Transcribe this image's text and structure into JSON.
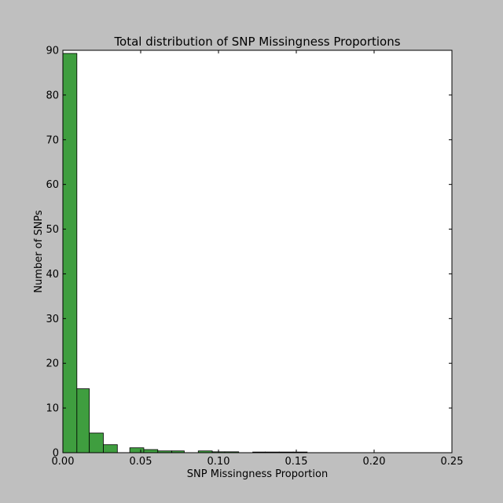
{
  "chart_data": {
    "type": "bar",
    "title": "Total distribution of SNP Missingness Proportions",
    "xlabel": "SNP Missingness Proportion",
    "ylabel": "Number of SNPs",
    "xlim": [
      0.0,
      0.25
    ],
    "ylim": [
      0,
      90
    ],
    "x_ticks": [
      "0.00",
      "0.05",
      "0.10",
      "0.15",
      "0.20",
      "0.25"
    ],
    "y_ticks": [
      "0",
      "10",
      "20",
      "30",
      "40",
      "50",
      "60",
      "70",
      "80",
      "90"
    ],
    "bar_color": "#3f9e3f",
    "bins": [
      {
        "x0": 0.0,
        "x1": 0.009,
        "value": 89.3
      },
      {
        "x0": 0.009,
        "x1": 0.017,
        "value": 14.3
      },
      {
        "x0": 0.017,
        "x1": 0.026,
        "value": 4.4
      },
      {
        "x0": 0.026,
        "x1": 0.035,
        "value": 1.8
      },
      {
        "x0": 0.035,
        "x1": 0.043,
        "value": 0.0
      },
      {
        "x0": 0.043,
        "x1": 0.052,
        "value": 1.1
      },
      {
        "x0": 0.052,
        "x1": 0.061,
        "value": 0.7
      },
      {
        "x0": 0.061,
        "x1": 0.07,
        "value": 0.4
      },
      {
        "x0": 0.07,
        "x1": 0.078,
        "value": 0.4
      },
      {
        "x0": 0.078,
        "x1": 0.087,
        "value": 0.0
      },
      {
        "x0": 0.087,
        "x1": 0.096,
        "value": 0.4
      },
      {
        "x0": 0.096,
        "x1": 0.104,
        "value": 0.2
      },
      {
        "x0": 0.104,
        "x1": 0.113,
        "value": 0.2
      },
      {
        "x0": 0.113,
        "x1": 0.122,
        "value": 0.0
      },
      {
        "x0": 0.122,
        "x1": 0.13,
        "value": 0.15
      },
      {
        "x0": 0.13,
        "x1": 0.139,
        "value": 0.15
      },
      {
        "x0": 0.139,
        "x1": 0.148,
        "value": 0.15
      },
      {
        "x0": 0.148,
        "x1": 0.157,
        "value": 0.15
      }
    ]
  }
}
